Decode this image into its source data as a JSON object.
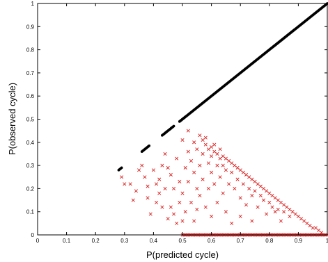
{
  "chart_data": {
    "type": "scatter",
    "title": "",
    "xlabel": "P(predicted cycle)",
    "ylabel": "P(observed cycle)",
    "xlim": [
      0,
      1
    ],
    "ylim": [
      0,
      1
    ],
    "x_ticks": [
      "0",
      "0.1",
      "0.2",
      "0.3",
      "0.4",
      "0.5",
      "0.6",
      "0.7",
      "0.8",
      "0.9",
      "1"
    ],
    "y_ticks": [
      "0",
      "0.1",
      "0.2",
      "0.3",
      "0.4",
      "0.5",
      "0.6",
      "0.7",
      "0.8",
      "0.9",
      "1"
    ],
    "grid": false,
    "legend": "none",
    "series": [
      {
        "marker": "dot",
        "color": "#000000",
        "segments": [
          {
            "from": [
              0.28,
              0.28
            ],
            "to": [
              0.29,
              0.29
            ]
          },
          {
            "from": [
              0.36,
              0.36
            ],
            "to": [
              0.385,
              0.385
            ]
          },
          {
            "from": [
              0.43,
              0.43
            ],
            "to": [
              0.47,
              0.47
            ]
          },
          {
            "from": [
              0.49,
              0.49
            ],
            "to": [
              1.0,
              1.0
            ]
          }
        ]
      },
      {
        "marker": "x",
        "color": "#dd2222",
        "points": [
          [
            0.29,
            0.25
          ],
          [
            0.3,
            0.22
          ],
          [
            0.32,
            0.22
          ],
          [
            0.33,
            0.15
          ],
          [
            0.34,
            0.19
          ],
          [
            0.35,
            0.28
          ],
          [
            0.36,
            0.3
          ],
          [
            0.37,
            0.25
          ],
          [
            0.38,
            0.21
          ],
          [
            0.38,
            0.16
          ],
          [
            0.39,
            0.09
          ],
          [
            0.4,
            0.28
          ],
          [
            0.41,
            0.22
          ],
          [
            0.41,
            0.14
          ],
          [
            0.42,
            0.18
          ],
          [
            0.42,
            0.24
          ],
          [
            0.43,
            0.12
          ],
          [
            0.43,
            0.3
          ],
          [
            0.44,
            0.35
          ],
          [
            0.44,
            0.2
          ],
          [
            0.45,
            0.29
          ],
          [
            0.45,
            0.07
          ],
          [
            0.46,
            0.26
          ],
          [
            0.46,
            0.12
          ],
          [
            0.47,
            0.2
          ],
          [
            0.47,
            0.09
          ],
          [
            0.48,
            0.33
          ],
          [
            0.48,
            0.05
          ],
          [
            0.49,
            0.23
          ],
          [
            0.49,
            0.14
          ],
          [
            0.5,
            0.41
          ],
          [
            0.5,
            0.18
          ],
          [
            0.5,
            0.06
          ],
          [
            0.51,
            0.29
          ],
          [
            0.51,
            0.1
          ],
          [
            0.52,
            0.45
          ],
          [
            0.52,
            0.23
          ],
          [
            0.52,
            0.36
          ],
          [
            0.53,
            0.14
          ],
          [
            0.53,
            0.32
          ],
          [
            0.54,
            0.4
          ],
          [
            0.54,
            0.27
          ],
          [
            0.54,
            0.06
          ],
          [
            0.55,
            0.2
          ],
          [
            0.55,
            0.37
          ],
          [
            0.55,
            0.11
          ],
          [
            0.56,
            0.43
          ],
          [
            0.56,
            0.3
          ],
          [
            0.56,
            0.17
          ],
          [
            0.57,
            0.41
          ],
          [
            0.57,
            0.35
          ],
          [
            0.57,
            0.24
          ],
          [
            0.58,
            0.39
          ],
          [
            0.58,
            0.42
          ],
          [
            0.58,
            0.12
          ],
          [
            0.59,
            0.37
          ],
          [
            0.59,
            0.31
          ],
          [
            0.59,
            0.2
          ],
          [
            0.6,
            0.38
          ],
          [
            0.6,
            0.34
          ],
          [
            0.6,
            0.27
          ],
          [
            0.6,
            0.08
          ],
          [
            0.61,
            0.36
          ],
          [
            0.61,
            0.39
          ],
          [
            0.61,
            0.22
          ],
          [
            0.62,
            0.35
          ],
          [
            0.62,
            0.3
          ],
          [
            0.62,
            0.14
          ],
          [
            0.63,
            0.33
          ],
          [
            0.63,
            0.37
          ],
          [
            0.63,
            0.25
          ],
          [
            0.64,
            0.34
          ],
          [
            0.64,
            0.3
          ],
          [
            0.64,
            0.18
          ],
          [
            0.65,
            0.33
          ],
          [
            0.65,
            0.28
          ],
          [
            0.65,
            0.1
          ],
          [
            0.66,
            0.32
          ],
          [
            0.66,
            0.22
          ],
          [
            0.67,
            0.31
          ],
          [
            0.67,
            0.27
          ],
          [
            0.67,
            0.05
          ],
          [
            0.68,
            0.3
          ],
          [
            0.68,
            0.2
          ],
          [
            0.69,
            0.29
          ],
          [
            0.69,
            0.24
          ],
          [
            0.7,
            0.28
          ],
          [
            0.7,
            0.16
          ],
          [
            0.7,
            0.08
          ],
          [
            0.71,
            0.27
          ],
          [
            0.71,
            0.22
          ],
          [
            0.72,
            0.26
          ],
          [
            0.72,
            0.13
          ],
          [
            0.73,
            0.25
          ],
          [
            0.73,
            0.2
          ],
          [
            0.74,
            0.24
          ],
          [
            0.74,
            0.17
          ],
          [
            0.74,
            0.06
          ],
          [
            0.75,
            0.23
          ],
          [
            0.75,
            0.19
          ],
          [
            0.76,
            0.22
          ],
          [
            0.76,
            0.12
          ],
          [
            0.77,
            0.21
          ],
          [
            0.77,
            0.17
          ],
          [
            0.78,
            0.2
          ],
          [
            0.78,
            0.15
          ],
          [
            0.79,
            0.19
          ],
          [
            0.79,
            0.09
          ],
          [
            0.8,
            0.18
          ],
          [
            0.8,
            0.14
          ],
          [
            0.81,
            0.17
          ],
          [
            0.81,
            0.12
          ],
          [
            0.82,
            0.16
          ],
          [
            0.82,
            0.1
          ],
          [
            0.83,
            0.15
          ],
          [
            0.83,
            0.11
          ],
          [
            0.84,
            0.14
          ],
          [
            0.84,
            0.06
          ],
          [
            0.85,
            0.13
          ],
          [
            0.85,
            0.1
          ],
          [
            0.86,
            0.12
          ],
          [
            0.87,
            0.11
          ],
          [
            0.87,
            0.08
          ],
          [
            0.88,
            0.1
          ],
          [
            0.89,
            0.09
          ],
          [
            0.9,
            0.08
          ],
          [
            0.91,
            0.07
          ],
          [
            0.92,
            0.06
          ],
          [
            0.93,
            0.05
          ],
          [
            0.94,
            0.04
          ],
          [
            0.95,
            0.03
          ],
          [
            0.96,
            0.03
          ],
          [
            0.97,
            0.02
          ],
          [
            0.98,
            0.01
          ]
        ],
        "baseline_y": 0,
        "baseline_x_range": [
          0.5,
          1.0
        ],
        "baseline_count": 120
      }
    ]
  }
}
